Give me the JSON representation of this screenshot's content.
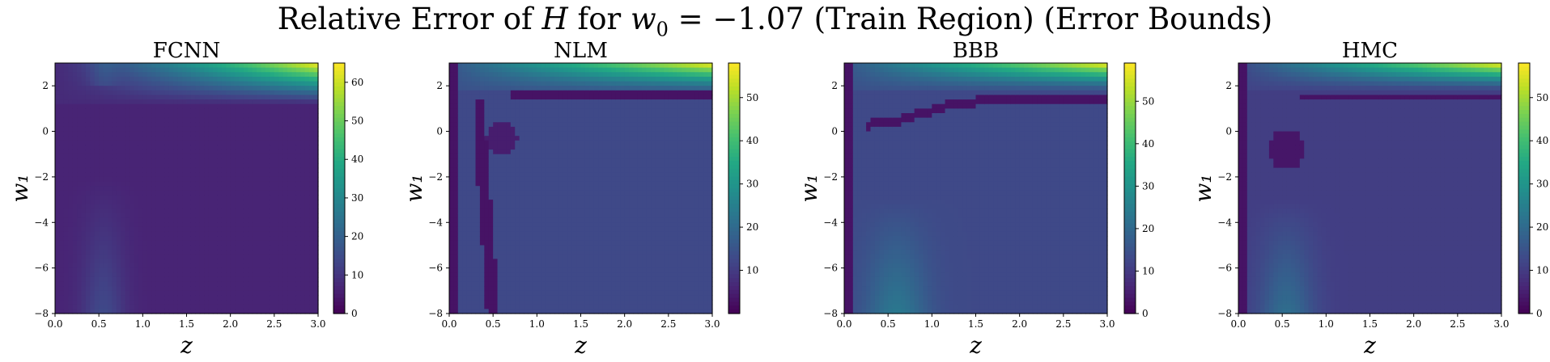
{
  "suptitle": {
    "pre": "Relative Error of ",
    "var": "H",
    "mid": " for ",
    "param": "w",
    "param_sub": "0",
    "post": " = −1.07 (Train Region) (Error Bounds)"
  },
  "chart_data": [
    {
      "type": "heatmap",
      "title": "FCNN",
      "xlabel": "z",
      "ylabel": "w₁",
      "xlim": [
        0.0,
        3.0
      ],
      "ylim": [
        -8,
        3
      ],
      "xticks": [
        "0.0",
        "0.5",
        "1.0",
        "1.5",
        "2.0",
        "2.5",
        "3.0"
      ],
      "yticks": [
        "2",
        "0",
        "−2",
        "−4",
        "−6",
        "−8"
      ],
      "colorbar": {
        "min": 0,
        "max": 65,
        "ticks": [
          "0",
          "10",
          "20",
          "30",
          "40",
          "50",
          "60"
        ],
        "tick_values": [
          0,
          10,
          20,
          30,
          40,
          50,
          60
        ]
      },
      "colormap": "viridis"
    },
    {
      "type": "heatmap",
      "title": "NLM",
      "xlabel": "z",
      "ylabel": "w₁",
      "xlim": [
        0.0,
        3.0
      ],
      "ylim": [
        -8,
        3
      ],
      "xticks": [
        "0.0",
        "0.5",
        "1.0",
        "1.5",
        "2.0",
        "2.5",
        "3.0"
      ],
      "yticks": [
        "2",
        "0",
        "−2",
        "−4",
        "−6",
        "−8"
      ],
      "colorbar": {
        "min": 0,
        "max": 58,
        "ticks": [
          "10",
          "20",
          "30",
          "40",
          "50"
        ],
        "tick_values": [
          10,
          20,
          30,
          40,
          50
        ]
      },
      "colormap": "viridis"
    },
    {
      "type": "heatmap",
      "title": "BBB",
      "xlabel": "z",
      "ylabel": "w₁",
      "xlim": [
        0.0,
        3.0
      ],
      "ylim": [
        -8,
        3
      ],
      "xticks": [
        "0.0",
        "0.5",
        "1.0",
        "1.5",
        "2.0",
        "2.5",
        "3.0"
      ],
      "yticks": [
        "2",
        "0",
        "−2",
        "−4",
        "−6",
        "−8"
      ],
      "colorbar": {
        "min": 0,
        "max": 59,
        "ticks": [
          "0",
          "10",
          "20",
          "30",
          "40",
          "50"
        ],
        "tick_values": [
          0,
          10,
          20,
          30,
          40,
          50
        ]
      },
      "colormap": "viridis"
    },
    {
      "type": "heatmap",
      "title": "HMC",
      "xlabel": "z",
      "ylabel": "w₁",
      "xlim": [
        0.0,
        3.0
      ],
      "ylim": [
        -8,
        3
      ],
      "xticks": [
        "0.0",
        "0.5",
        "1.0",
        "1.5",
        "2.0",
        "2.5",
        "3.0"
      ],
      "yticks": [
        "2",
        "0",
        "−2",
        "−4",
        "−6",
        "−8"
      ],
      "colorbar": {
        "min": 0,
        "max": 58,
        "ticks": [
          "0",
          "10",
          "20",
          "30",
          "40",
          "50"
        ],
        "tick_values": [
          0,
          10,
          20,
          30,
          40,
          50
        ]
      },
      "colormap": "viridis"
    }
  ]
}
